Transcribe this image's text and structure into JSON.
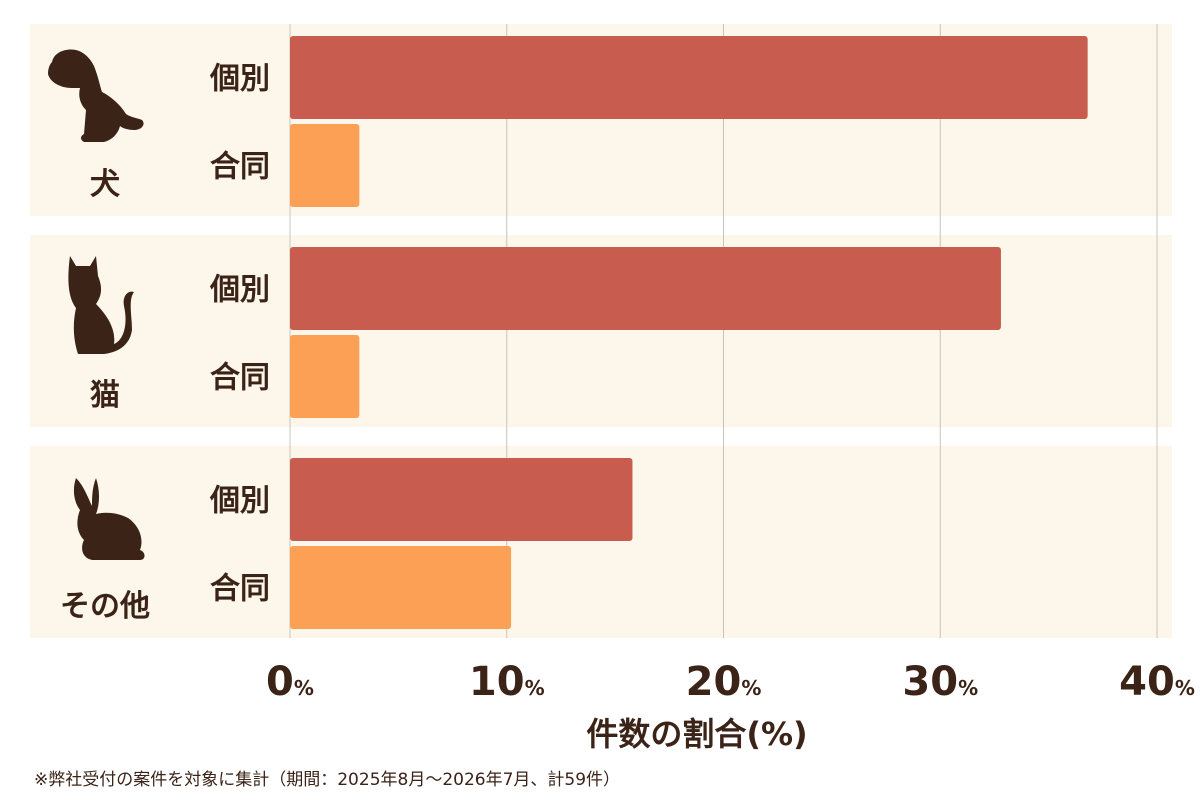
{
  "chart_data": {
    "type": "bar",
    "orientation": "horizontal",
    "categories": [
      "犬",
      "猫",
      "その他"
    ],
    "category_icons": [
      "dog-icon",
      "cat-icon",
      "rabbit-icon"
    ],
    "series": [
      {
        "name": "個別",
        "values": [
          36.8,
          32.8,
          15.8
        ]
      },
      {
        "name": "合同",
        "values": [
          3.2,
          3.2,
          10.2
        ]
      }
    ],
    "series_colors": [
      "#c75c4f",
      "#fca055"
    ],
    "xlim": [
      0,
      40
    ],
    "xticks": [
      0,
      10,
      20,
      30,
      40
    ],
    "tick_unit": "%",
    "xlabel": "件数の割合(%)",
    "grid": true
  },
  "footnote": "※弊社受付の案件を対象に集計（期間：2025年8月～2026年7月、計59件）"
}
